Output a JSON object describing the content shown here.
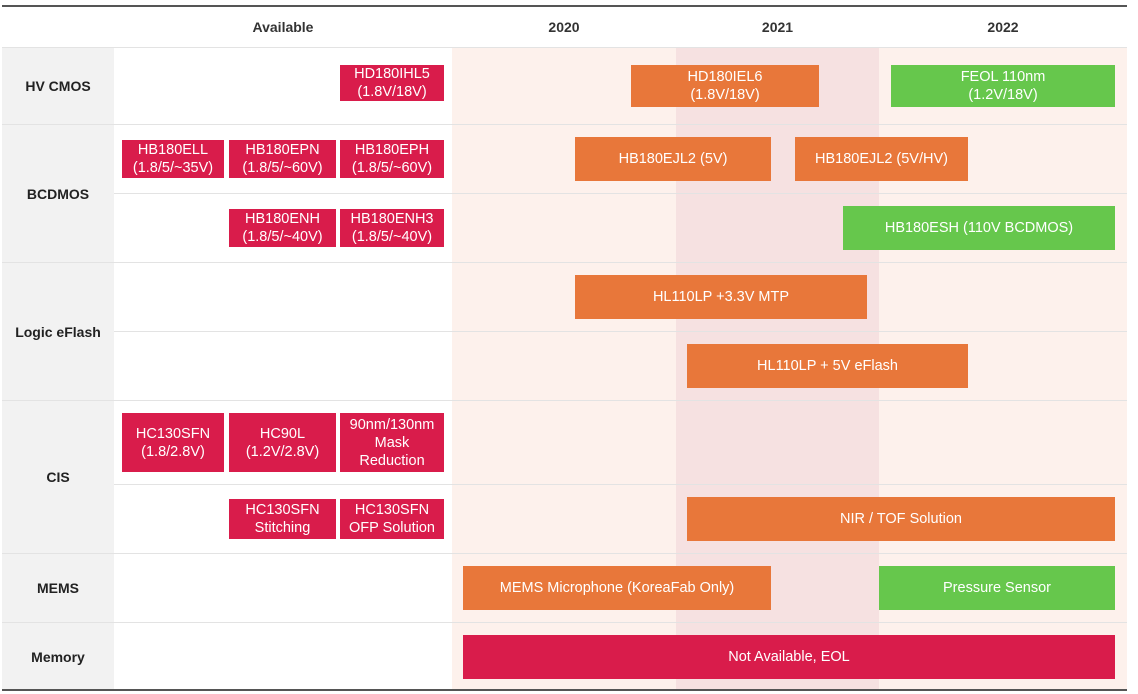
{
  "header": {
    "available": "Available",
    "years": [
      "2020",
      "2021",
      "2022"
    ]
  },
  "rows": [
    {
      "label": "HV CMOS"
    },
    {
      "label": "BCDMOS"
    },
    {
      "label": "Logic eFlash"
    },
    {
      "label": "CIS"
    },
    {
      "label": "MEMS"
    },
    {
      "label": "Memory"
    }
  ],
  "bars": [
    {
      "id": "hd180ihl5",
      "text": "HD180IHL5\n(1.8V/18V)",
      "status": "available"
    },
    {
      "id": "hd180iel6",
      "text": "HD180IEL6\n(1.8V/18V)",
      "status": "planned"
    },
    {
      "id": "feol-110nm",
      "text": "FEOL 110nm\n(1.2V/18V)",
      "status": "new"
    },
    {
      "id": "hb180ell",
      "text": "HB180ELL\n(1.8/5/~35V)",
      "status": "available"
    },
    {
      "id": "hb180epn",
      "text": "HB180EPN\n(1.8/5/~60V)",
      "status": "available"
    },
    {
      "id": "hb180eph",
      "text": "HB180EPH\n(1.8/5/~60V)",
      "status": "available"
    },
    {
      "id": "hb180ejl2-5v",
      "text": "HB180EJL2 (5V)",
      "status": "planned"
    },
    {
      "id": "hb180ejl2-5v-hv",
      "text": "HB180EJL2 (5V/HV)",
      "status": "planned"
    },
    {
      "id": "hb180enh",
      "text": "HB180ENH\n(1.8/5/~40V)",
      "status": "available"
    },
    {
      "id": "hb180enh3",
      "text": "HB180ENH3\n(1.8/5/~40V)",
      "status": "available"
    },
    {
      "id": "hb180esh",
      "text": "HB180ESH (110V BCDMOS)",
      "status": "new"
    },
    {
      "id": "hl110lp-mtp",
      "text": "HL110LP +3.3V MTP",
      "status": "planned"
    },
    {
      "id": "hl110lp-eflash",
      "text": "HL110LP + 5V eFlash",
      "status": "planned"
    },
    {
      "id": "hc130sfn",
      "text": "HC130SFN\n(1.8/2.8V)",
      "status": "available"
    },
    {
      "id": "hc90l",
      "text": "HC90L\n(1.2V/2.8V)",
      "status": "available"
    },
    {
      "id": "mask-reduction",
      "text": "90nm/130nm\nMask\nReduction",
      "status": "available"
    },
    {
      "id": "hc130sfn-stitching",
      "text": "HC130SFN\nStitching",
      "status": "available"
    },
    {
      "id": "hc130sfn-ofp",
      "text": "HC130SFN\nOFP Solution",
      "status": "available"
    },
    {
      "id": "nir-tof",
      "text": "NIR / TOF  Solution",
      "status": "planned"
    },
    {
      "id": "mems-microphone",
      "text": "MEMS Microphone (KoreaFab Only)",
      "status": "planned"
    },
    {
      "id": "pressure-sensor",
      "text": "Pressure Sensor",
      "status": "new"
    },
    {
      "id": "not-available-eol",
      "text": "Not Available, EOL",
      "status": "eol"
    }
  ],
  "colors": {
    "available": "#d91c4b",
    "planned": "#e8773a",
    "new": "#66c74c",
    "timeline_bg": "#fdf1ec",
    "year_2021_highlight": "#f6e1e1"
  }
}
